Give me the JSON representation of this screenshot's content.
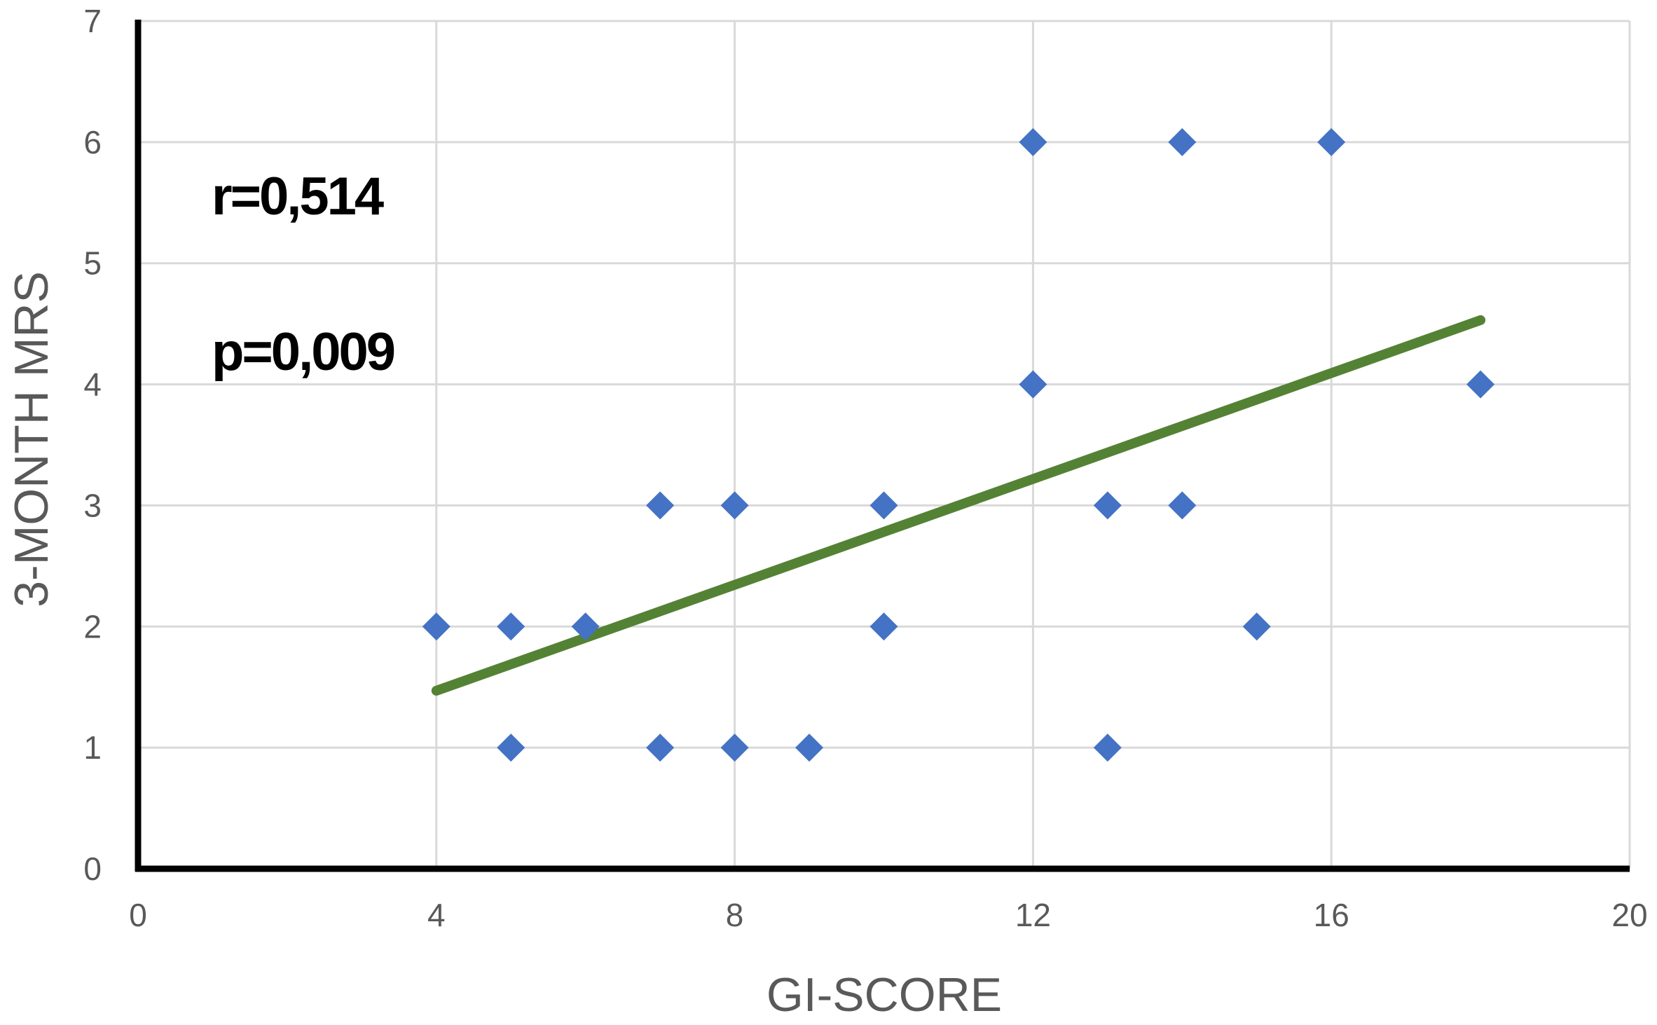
{
  "chart_data": {
    "type": "scatter",
    "xlabel": "GI-SCORE",
    "ylabel": "3-MONTH MRS",
    "xlim": [
      0,
      20
    ],
    "ylim": [
      0,
      7
    ],
    "x_ticks": [
      0,
      4,
      8,
      12,
      16,
      20
    ],
    "y_ticks": [
      0,
      1,
      2,
      3,
      4,
      5,
      6,
      7
    ],
    "grid": true,
    "legend": "none",
    "series": [
      {
        "marker": "diamond",
        "color": "#4472C4",
        "points": [
          {
            "x": 4,
            "y": 2
          },
          {
            "x": 5,
            "y": 2
          },
          {
            "x": 6,
            "y": 2
          },
          {
            "x": 5,
            "y": 1
          },
          {
            "x": 7,
            "y": 1
          },
          {
            "x": 8,
            "y": 1
          },
          {
            "x": 9,
            "y": 1
          },
          {
            "x": 7,
            "y": 3
          },
          {
            "x": 8,
            "y": 3
          },
          {
            "x": 10,
            "y": 3
          },
          {
            "x": 10,
            "y": 2
          },
          {
            "x": 12,
            "y": 6
          },
          {
            "x": 14,
            "y": 6
          },
          {
            "x": 16,
            "y": 6
          },
          {
            "x": 12,
            "y": 4
          },
          {
            "x": 13,
            "y": 3
          },
          {
            "x": 14,
            "y": 3
          },
          {
            "x": 15,
            "y": 2
          },
          {
            "x": 13,
            "y": 1
          },
          {
            "x": 18,
            "y": 4
          }
        ]
      }
    ],
    "trendline": {
      "type": "linear",
      "color": "#548235",
      "start": {
        "x": 4,
        "y": 1.47
      },
      "end": {
        "x": 18,
        "y": 4.53
      }
    },
    "annotations": [
      "r=0,514",
      "p=0,009"
    ]
  }
}
